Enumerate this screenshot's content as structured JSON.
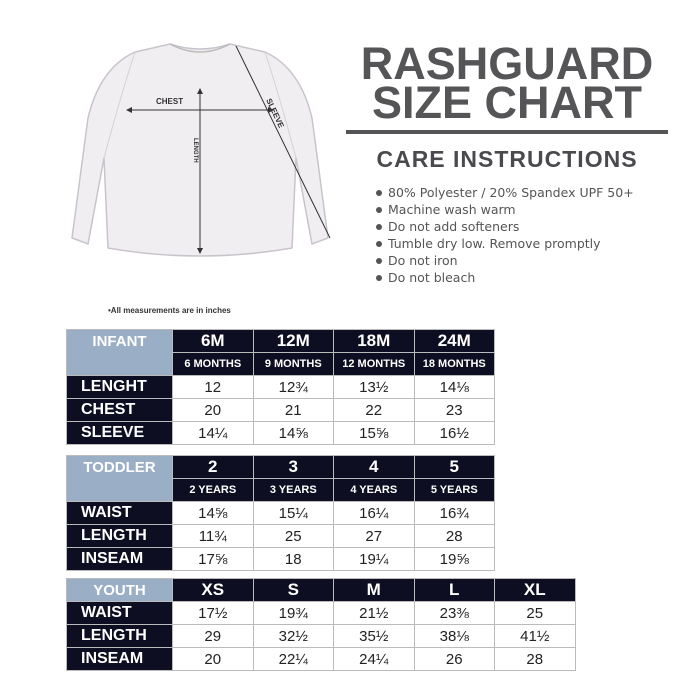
{
  "title": {
    "line1": "RASHGUARD",
    "line2": "SIZE CHART"
  },
  "care": {
    "title": "CARE INSTRUCTIONS",
    "items": [
      "80% Polyester / 20% Spandex UPF 50+",
      "Machine wash warm",
      "Do not add softeners",
      "Tumble dry low. Remove promptly",
      "Do not iron",
      "Do not bleach"
    ]
  },
  "diagram": {
    "chest": "CHEST",
    "length": "LENGTH",
    "sleeve": "SLEEVE"
  },
  "note": "•All measurements are in inches",
  "colors": {
    "header": "#0e0e22",
    "category": "#9aaec6",
    "title": "#555558"
  },
  "tables": [
    {
      "category": "INFANT",
      "sizes": [
        "6M",
        "12M",
        "18M",
        "24M"
      ],
      "ages": [
        "6 MONTHS",
        "9 MONTHS",
        "12 MONTHS",
        "18 MONTHS"
      ],
      "rows": [
        {
          "label": "LENGHT",
          "values": [
            "12",
            "12¾",
            "13½",
            "14⅛"
          ]
        },
        {
          "label": "CHEST",
          "values": [
            "20",
            "21",
            "22",
            "23"
          ]
        },
        {
          "label": "SLEEVE",
          "values": [
            "14¼",
            "14⅝",
            "15⅝",
            "16½"
          ]
        }
      ]
    },
    {
      "category": "TODDLER",
      "sizes": [
        "2",
        "3",
        "4",
        "5"
      ],
      "ages": [
        "2 YEARS",
        "3 YEARS",
        "4 YEARS",
        "5 YEARS"
      ],
      "rows": [
        {
          "label": "WAIST",
          "values": [
            "14⅝",
            "15¼",
            "16¼",
            "16¾"
          ]
        },
        {
          "label": "LENGTH",
          "values": [
            "11¾",
            "25",
            "27",
            "28"
          ]
        },
        {
          "label": "INSEAM",
          "values": [
            "17⅝",
            "18",
            "19¼",
            "19⅝"
          ]
        }
      ]
    },
    {
      "category": "YOUTH",
      "sizes": [
        "XS",
        "S",
        "M",
        "L",
        "XL"
      ],
      "rows": [
        {
          "label": "WAIST",
          "values": [
            "17½",
            "19¾",
            "21½",
            "23⅜",
            "25"
          ]
        },
        {
          "label": "LENGTH",
          "values": [
            "29",
            "32½",
            "35½",
            "38⅛",
            "41½"
          ]
        },
        {
          "label": "INSEAM",
          "values": [
            "20",
            "22¼",
            "24¼",
            "26",
            "28"
          ]
        }
      ]
    }
  ]
}
